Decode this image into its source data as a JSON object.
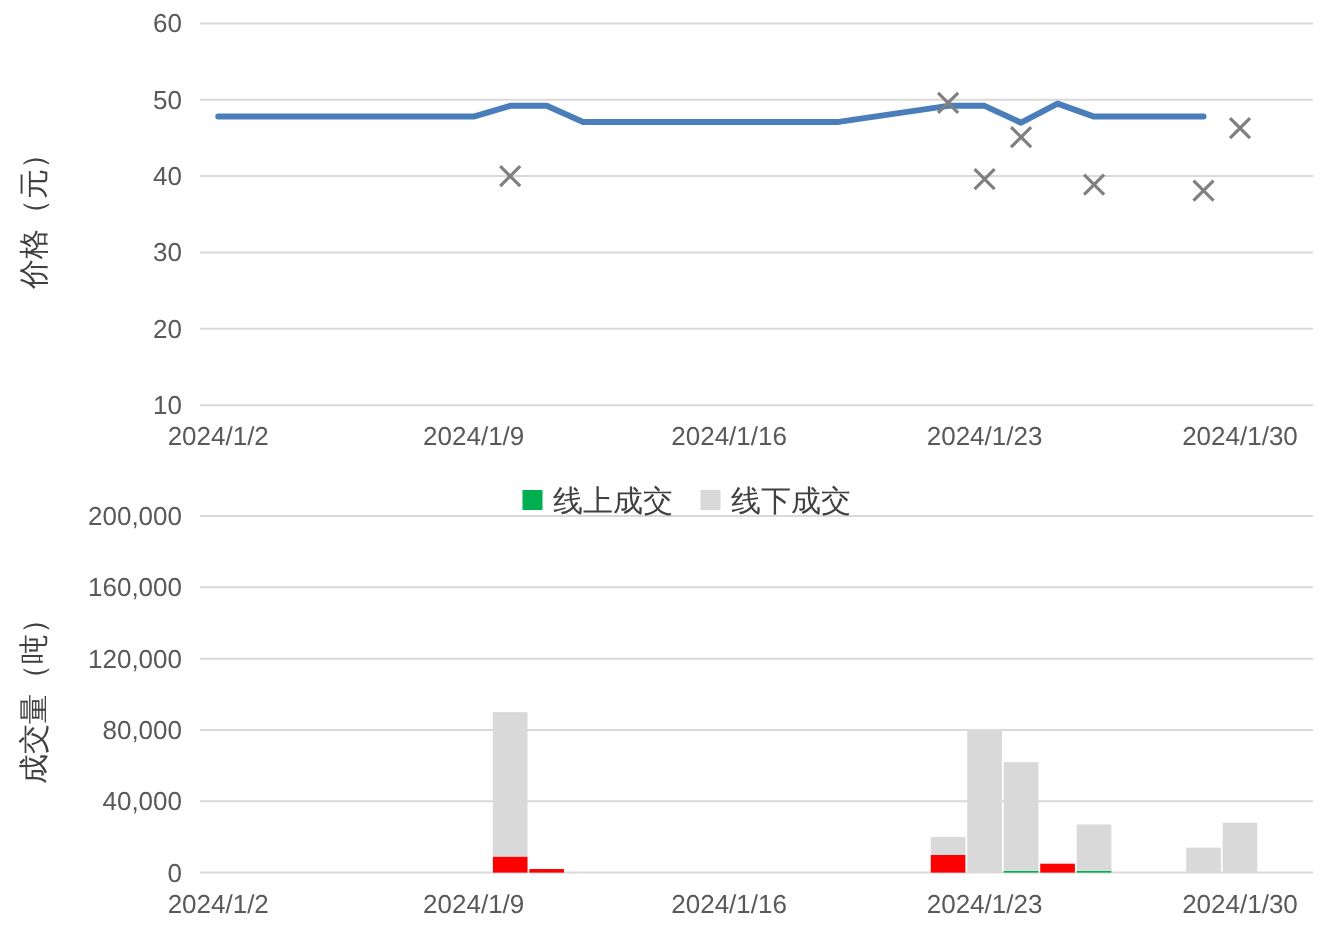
{
  "chart_data": [
    {
      "type": "line",
      "ylabel": "价格（元）",
      "xlim": [
        "2024-01-01T12:00",
        "2024-02-01"
      ],
      "xticks": [
        {
          "value": "2024-01-02",
          "label": "2024/1/2"
        },
        {
          "value": "2024-01-09",
          "label": "2024/1/9"
        },
        {
          "value": "2024-01-16",
          "label": "2024/1/16"
        },
        {
          "value": "2024-01-23",
          "label": "2024/1/23"
        },
        {
          "value": "2024-01-30",
          "label": "2024/1/30"
        }
      ],
      "ylim": [
        10,
        60
      ],
      "yticks": [
        10,
        20,
        30,
        40,
        50,
        60
      ],
      "grid": "y",
      "series": [
        {
          "color": "#4a7ebb",
          "x": [
            "2024-01-02",
            "2024-01-03",
            "2024-01-04",
            "2024-01-05",
            "2024-01-06",
            "2024-01-07",
            "2024-01-08",
            "2024-01-09",
            "2024-01-10",
            "2024-01-11",
            "2024-01-12",
            "2024-01-13",
            "2024-01-14",
            "2024-01-15",
            "2024-01-16",
            "2024-01-17",
            "2024-01-18",
            "2024-01-19",
            "2024-01-22",
            "2024-01-23",
            "2024-01-24",
            "2024-01-25",
            "2024-01-26",
            "2024-01-27",
            "2024-01-28",
            "2024-01-29"
          ],
          "values": [
            47.8,
            47.8,
            47.8,
            47.8,
            47.8,
            47.8,
            47.8,
            47.8,
            49.2,
            49.2,
            47.1,
            47.1,
            47.1,
            47.1,
            47.1,
            47.1,
            47.1,
            47.1,
            49.2,
            49.2,
            47.0,
            49.5,
            47.8,
            47.8,
            47.8,
            47.8
          ]
        },
        {
          "type": "scatter",
          "color": "#808080",
          "marker": "cross",
          "x": [
            "2024-01-10",
            "2024-01-22",
            "2024-01-23",
            "2024-01-24",
            "2024-01-26",
            "2024-01-29",
            "2024-01-30"
          ],
          "values": [
            40.0,
            49.6,
            39.6,
            45.1,
            38.9,
            38.1,
            46.3
          ]
        }
      ]
    },
    {
      "type": "bar",
      "stacked": true,
      "ylabel": "成交量（吨）",
      "legend": "top",
      "grid": "y",
      "xlim": [
        "2024-01-01T12:00",
        "2024-02-01"
      ],
      "xticks": [
        {
          "value": "2024-01-02",
          "label": "2024/1/2"
        },
        {
          "value": "2024-01-09",
          "label": "2024/1/9"
        },
        {
          "value": "2024-01-16",
          "label": "2024/1/16"
        },
        {
          "value": "2024-01-23",
          "label": "2024/1/23"
        },
        {
          "value": "2024-01-30",
          "label": "2024/1/30"
        }
      ],
      "ylim": [
        0,
        200000
      ],
      "yticks": [
        0,
        {
          "value": 40000,
          "label": "40,000"
        },
        {
          "value": 80000,
          "label": "80,000"
        },
        {
          "value": 120000,
          "label": "120,000"
        },
        {
          "value": 160000,
          "label": "160,000"
        },
        {
          "value": 200000,
          "label": "200,000"
        }
      ],
      "x": [
        "2024-01-10",
        "2024-01-11",
        "2024-01-22",
        "2024-01-23",
        "2024-01-24",
        "2024-01-25",
        "2024-01-26",
        "2024-01-29",
        "2024-01-30"
      ],
      "series": [
        {
          "name": "线上成交",
          "color": "#00b050",
          "colors": [
            "#ff0000",
            "#ff0000",
            "#ff0000",
            null,
            "#00b050",
            "#ff0000",
            "#00b050",
            null,
            null
          ],
          "values": [
            9000,
            2000,
            10000,
            null,
            1000,
            5000,
            1000,
            null,
            null
          ]
        },
        {
          "name": "线下成交",
          "color": "#d9d9d9",
          "values": [
            81000,
            null,
            10000,
            80000,
            61000,
            null,
            26000,
            14000,
            28000
          ]
        }
      ]
    }
  ]
}
